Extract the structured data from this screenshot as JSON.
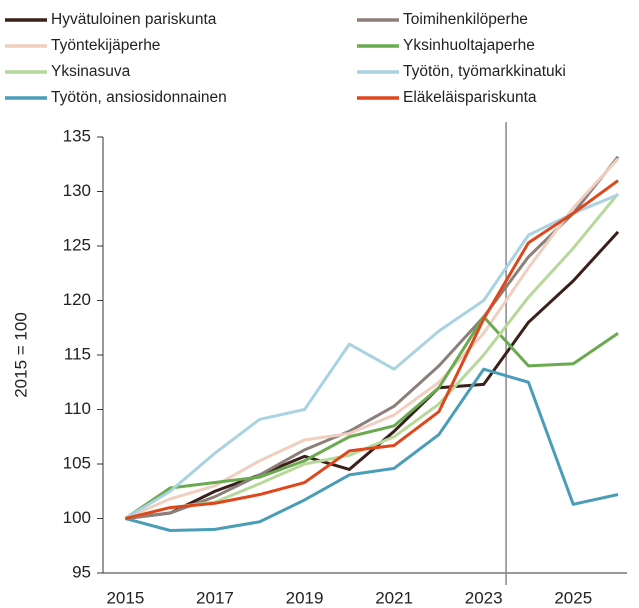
{
  "chart_data": {
    "type": "line",
    "ylabel": "2015 = 100",
    "x": [
      2015,
      2016,
      2017,
      2018,
      2019,
      2020,
      2021,
      2022,
      2023,
      2024,
      2025,
      2026
    ],
    "xlim": [
      2014.5,
      2026.2
    ],
    "xticks": [
      2015,
      2017,
      2019,
      2021,
      2023,
      2025
    ],
    "ylim": [
      95,
      135
    ],
    "yticks": [
      95,
      100,
      105,
      110,
      115,
      120,
      125,
      130,
      135
    ],
    "vline": 2023.5,
    "grid": false,
    "legend": "top",
    "series": [
      {
        "name": "Hyvätuloinen pariskunta",
        "color": "#3b1f1b",
        "values": [
          100,
          100.5,
          102.5,
          104,
          105.7,
          104.5,
          108,
          112,
          112.3,
          118,
          121.8,
          126.3
        ]
      },
      {
        "name": "Toimihenkilöperhe",
        "color": "#8c7f7a",
        "values": [
          100,
          100.5,
          102,
          104,
          106.3,
          108,
          110.3,
          114,
          118.5,
          124,
          128,
          133.2
        ]
      },
      {
        "name": "Työntekijäperhe",
        "color": "#f0cfc0",
        "values": [
          100,
          101.8,
          103,
          105.3,
          107.2,
          107.8,
          109.5,
          112.5,
          117,
          123,
          128.5,
          133
        ]
      },
      {
        "name": "Yksinhuoltajaperhe",
        "color": "#6aaa50",
        "values": [
          100,
          102.8,
          103.3,
          103.8,
          105.3,
          107.5,
          108.5,
          112,
          118.5,
          114,
          114.2,
          117
        ]
      },
      {
        "name": "Yksinasuva",
        "color": "#b6d99a",
        "values": [
          100,
          101,
          101.5,
          103.2,
          105,
          105.8,
          107.5,
          110.5,
          115,
          120.3,
          124.8,
          129.8
        ]
      },
      {
        "name": "Työtön, työmarkkinatuki",
        "color": "#a9d3e0",
        "values": [
          100,
          102.5,
          106,
          109.1,
          110,
          116,
          113.7,
          117.2,
          120,
          126,
          128,
          129.7
        ]
      },
      {
        "name": "Työtön, ansiosidonnainen",
        "color": "#4a9db8",
        "values": [
          100,
          98.9,
          99,
          99.7,
          101.7,
          104,
          104.6,
          107.7,
          113.7,
          112.5,
          101.3,
          102.2
        ]
      },
      {
        "name": "Eläkeläispariskunta",
        "color": "#e0461c",
        "values": [
          100,
          101,
          101.4,
          102.2,
          103.3,
          106.2,
          106.7,
          109.8,
          118.3,
          125.3,
          128,
          131
        ]
      }
    ]
  }
}
